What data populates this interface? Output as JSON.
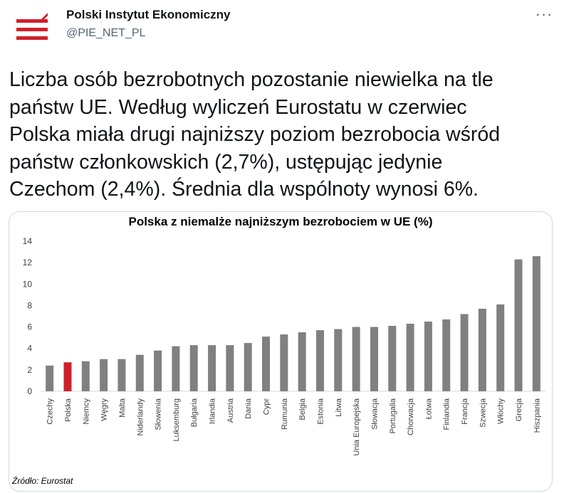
{
  "author": {
    "name": "Polski Instytut Ekonomiczny",
    "handle": "@PIE_NET_PL",
    "avatar_icon": "pie-logo-icon",
    "avatar_color": "#d0202b"
  },
  "menu": {
    "more_icon": "more-options-icon",
    "more_label": "···"
  },
  "tweet": {
    "text": "Liczba osób bezrobotnych pozostanie niewielka na tle\npaństw UE. Według wyliczeń Eurostatu w czerwiec\nPolska miała drugi najniższy poziom bezrobocia wśród\npaństw członkowskich (2,7%), ustępując jedynie\nCzechom (2,4%). Średnia dla wspólnoty wynosi 6%."
  },
  "chart_data": {
    "type": "bar",
    "title": "Polska z niemalże najniższym bezrobociem w UE (%)",
    "xlabel": "",
    "ylabel": "",
    "ylim": [
      0,
      14
    ],
    "yticks": [
      0,
      2,
      4,
      6,
      8,
      10,
      12,
      14
    ],
    "grid": false,
    "categories": [
      "Czechy",
      "Polska",
      "Niemcy",
      "Węgry",
      "Malta",
      "Niderlandy",
      "Słowenia",
      "Luksemburg",
      "Bułgaria",
      "Irlandia",
      "Austria",
      "Dania",
      "Cypr",
      "Rumunia",
      "Belgia",
      "Estonia",
      "Litwa",
      "Unia Europejska",
      "Słowacja",
      "Portugalia",
      "Chorwacja",
      "Łotwa",
      "Finlandia",
      "Francja",
      "Szwecja",
      "Włochy",
      "Grecja",
      "Hiszpania"
    ],
    "values": [
      2.4,
      2.7,
      2.8,
      3.0,
      3.0,
      3.4,
      3.8,
      4.2,
      4.3,
      4.3,
      4.3,
      4.5,
      5.1,
      5.3,
      5.5,
      5.7,
      5.8,
      6.0,
      6.0,
      6.1,
      6.3,
      6.5,
      6.7,
      7.2,
      7.7,
      8.1,
      12.3,
      12.6
    ],
    "highlight_category": "Polska",
    "bar_color": "#808080",
    "highlight_color": "#d0202b",
    "source": "Źródło: Eurostat"
  }
}
